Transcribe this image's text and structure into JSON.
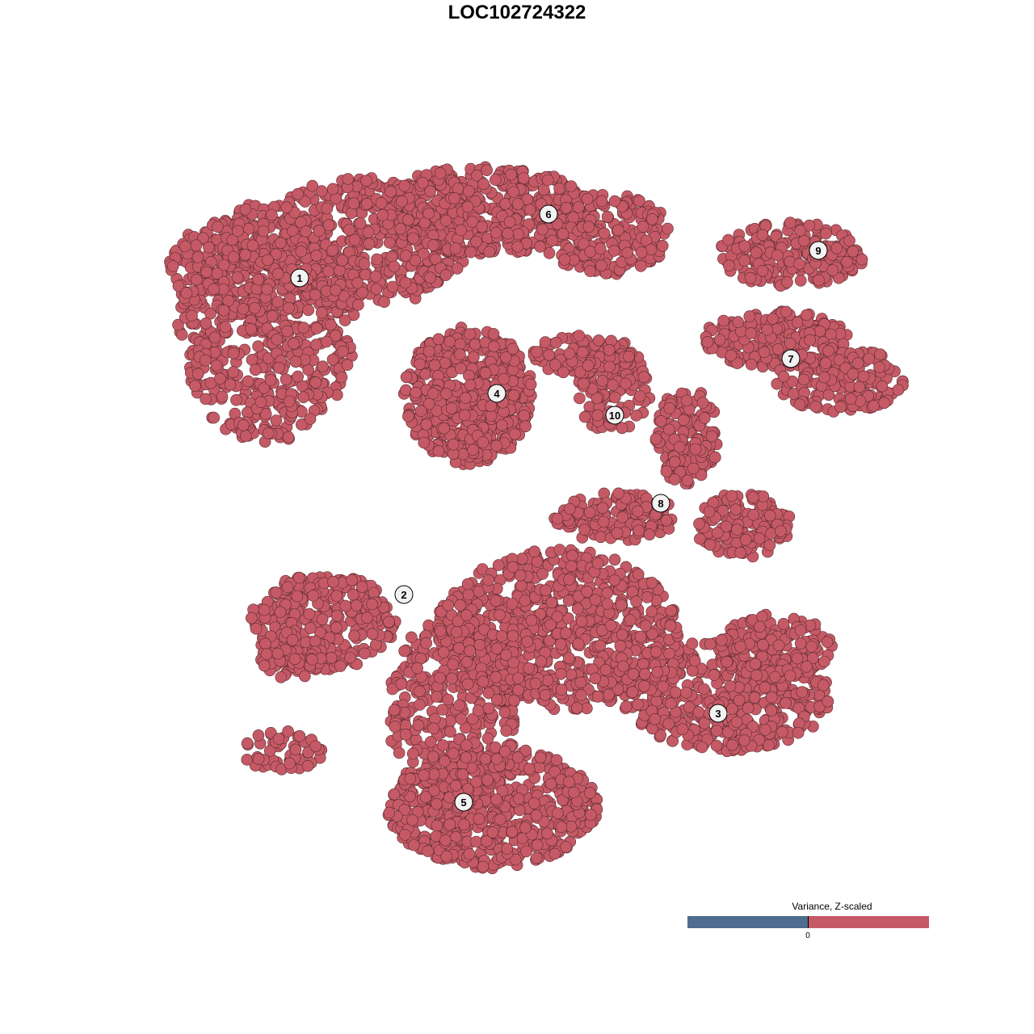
{
  "chart_data": {
    "type": "scatter",
    "title": "LOC102724322",
    "xlabel": "",
    "ylabel": "",
    "grid": false,
    "point_color": "#c55a66",
    "point_stroke": "#5a2a2e",
    "clusters": [
      "1",
      "2",
      "3",
      "4",
      "5",
      "6",
      "7",
      "8",
      "9",
      "10"
    ],
    "legend": {
      "title": "Variance, Z-scaled",
      "placement": "bottom-right",
      "low_color": "#4f6d8f",
      "high_color": "#c55a66",
      "tick_label": "0"
    }
  }
}
